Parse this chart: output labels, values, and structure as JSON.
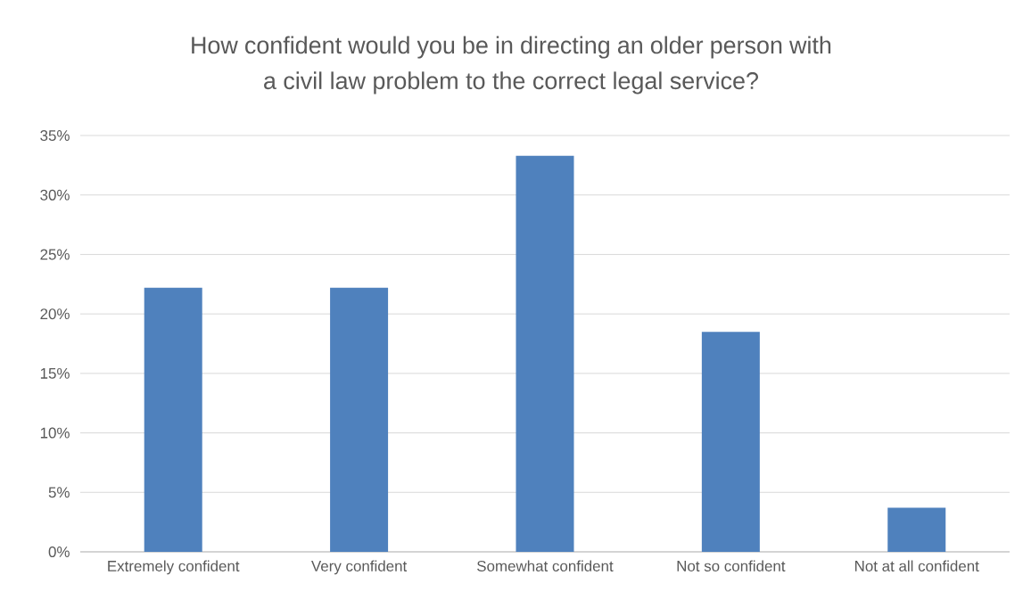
{
  "chart_data": {
    "type": "bar",
    "title": "How confident would you be in directing an older person with a civil law problem to the correct legal service?",
    "categories": [
      "Extremely confident",
      "Very confident",
      "Somewhat confident",
      "Not so confident",
      "Not at all confident"
    ],
    "values": [
      22.2,
      22.2,
      33.3,
      18.5,
      3.7
    ],
    "color": "#4f81bd",
    "ylim": [
      0,
      35
    ],
    "yticks": [
      {
        "value": 0,
        "label": "0%"
      },
      {
        "value": 5,
        "label": "5%"
      },
      {
        "value": 10,
        "label": "10%"
      },
      {
        "value": 15,
        "label": "15%"
      },
      {
        "value": 20,
        "label": "20%"
      },
      {
        "value": 25,
        "label": "25%"
      },
      {
        "value": 30,
        "label": "30%"
      },
      {
        "value": 35,
        "label": "35%"
      }
    ],
    "grid": "y"
  }
}
